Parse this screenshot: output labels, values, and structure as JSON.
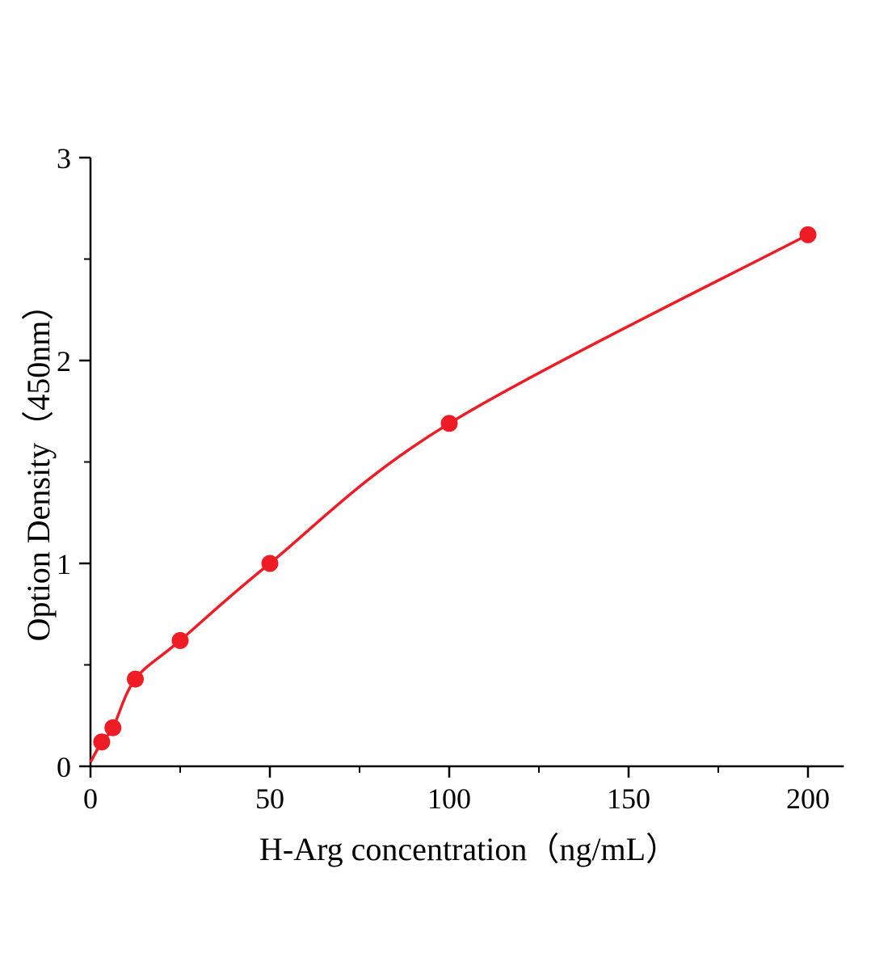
{
  "chart_data": {
    "type": "scatter",
    "title": "",
    "xlabel": "H-Arg concentration（ng/mL）",
    "ylabel": "Option Density（450nm）",
    "xlim": [
      0,
      210
    ],
    "ylim": [
      0,
      3
    ],
    "x_ticks": [
      0,
      50,
      100,
      150,
      200
    ],
    "x_minor_ticks": [
      25,
      75,
      125,
      175
    ],
    "y_ticks": [
      0,
      1,
      2,
      3
    ],
    "y_minor_ticks": [
      0.5,
      1.5,
      2.5
    ],
    "grid": "off",
    "legend": "none",
    "curve_color": "#ee1c25",
    "point_color": "#ee1c25",
    "axis_color": "#000000",
    "curve_start": [
      0,
      0.02
    ],
    "points": [
      {
        "x": 3.125,
        "y": 0.12
      },
      {
        "x": 6.25,
        "y": 0.19
      },
      {
        "x": 12.5,
        "y": 0.43
      },
      {
        "x": 25,
        "y": 0.62
      },
      {
        "x": 50,
        "y": 1.0
      },
      {
        "x": 100,
        "y": 1.69
      },
      {
        "x": 200,
        "y": 2.62
      }
    ]
  }
}
